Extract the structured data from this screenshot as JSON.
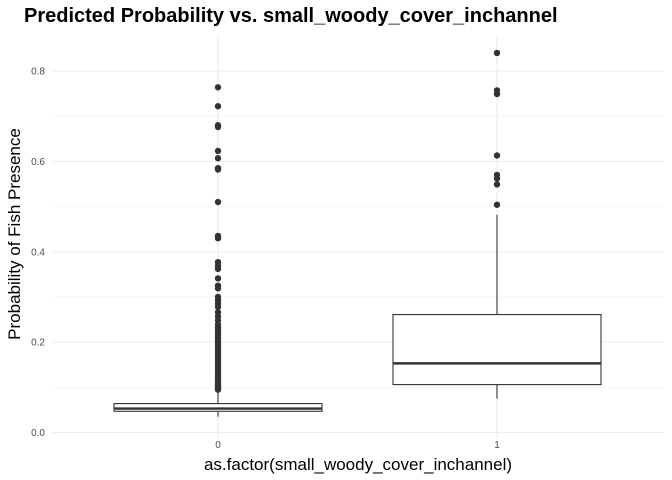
{
  "chart_data": {
    "type": "boxplot",
    "title": "Predicted Probability vs. small_woody_cover_inchannel",
    "xlabel": "as.factor(small_woody_cover_inchannel)",
    "ylabel": "Probability of Fish Presence",
    "categories": [
      "0",
      "1"
    ],
    "ylim": [
      0,
      0.88
    ],
    "yticks": [
      0.0,
      0.2,
      0.4,
      0.6,
      0.8
    ],
    "ytick_labels": [
      "0.0",
      "0.2",
      "0.4",
      "0.6",
      "0.8"
    ],
    "grid": true,
    "colors": {
      "box_line": "#333333",
      "outlier": "#333333",
      "grid_major": "#ebebeb",
      "grid_minor": "#f5f5f5"
    },
    "boxes": [
      {
        "category": "0",
        "whisker_low": 0.035,
        "q1": 0.047,
        "median": 0.053,
        "q3": 0.064,
        "whisker_high": 0.091,
        "outliers": [
          0.764,
          0.722,
          0.68,
          0.676,
          0.623,
          0.607,
          0.585,
          0.582,
          0.51,
          0.435,
          0.43,
          0.377,
          0.369,
          0.362,
          0.341,
          0.325,
          0.319,
          0.3,
          0.292,
          0.285,
          0.278,
          0.266,
          0.257,
          0.248,
          0.239,
          0.232,
          0.226,
          0.22,
          0.214,
          0.208,
          0.202,
          0.196,
          0.19,
          0.184,
          0.178,
          0.172,
          0.166,
          0.16,
          0.154,
          0.148,
          0.142,
          0.136,
          0.13,
          0.124,
          0.118,
          0.113,
          0.108,
          0.103,
          0.099,
          0.095
        ]
      },
      {
        "category": "1",
        "whisker_low": 0.075,
        "q1": 0.106,
        "median": 0.153,
        "q3": 0.261,
        "whisker_high": 0.482,
        "outliers": [
          0.84,
          0.757,
          0.749,
          0.613,
          0.57,
          0.562,
          0.549,
          0.504
        ]
      }
    ]
  }
}
